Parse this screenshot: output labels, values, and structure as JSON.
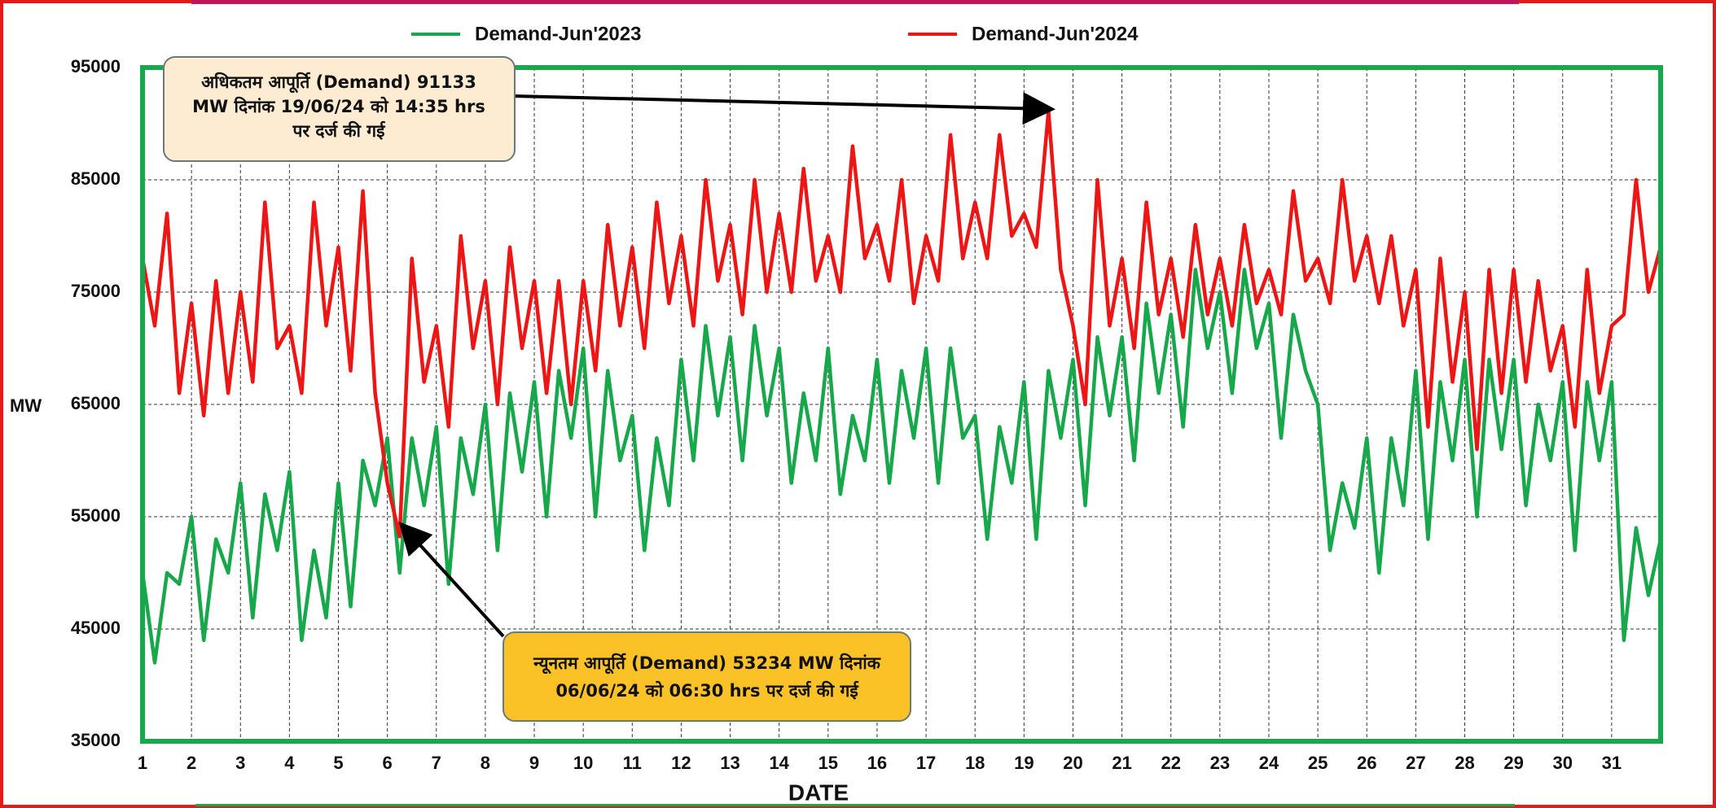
{
  "chart_data": {
    "type": "line",
    "xlabel": "DATE",
    "ylabel": "MW",
    "xlim": [
      1,
      32
    ],
    "ylim": [
      35000,
      95000
    ],
    "xticks": [
      1,
      2,
      3,
      4,
      5,
      6,
      7,
      8,
      9,
      10,
      11,
      12,
      13,
      14,
      15,
      16,
      17,
      18,
      19,
      20,
      21,
      22,
      23,
      24,
      25,
      26,
      27,
      28,
      29,
      30,
      31
    ],
    "yticks": [
      35000,
      45000,
      55000,
      65000,
      75000,
      85000,
      95000
    ],
    "grid": true,
    "legend": "top",
    "x": [
      1,
      1.25,
      1.5,
      1.75,
      2,
      2.25,
      2.5,
      2.75,
      3,
      3.25,
      3.5,
      3.75,
      4,
      4.25,
      4.5,
      4.75,
      5,
      5.25,
      5.5,
      5.75,
      6,
      6.25,
      6.5,
      6.75,
      7,
      7.25,
      7.5,
      7.75,
      8,
      8.25,
      8.5,
      8.75,
      9,
      9.25,
      9.5,
      9.75,
      10,
      10.25,
      10.5,
      10.75,
      11,
      11.25,
      11.5,
      11.75,
      12,
      12.25,
      12.5,
      12.75,
      13,
      13.25,
      13.5,
      13.75,
      14,
      14.25,
      14.5,
      14.75,
      15,
      15.25,
      15.5,
      15.75,
      16,
      16.25,
      16.5,
      16.75,
      17,
      17.25,
      17.5,
      17.75,
      18,
      18.25,
      18.5,
      18.75,
      19,
      19.25,
      19.5,
      19.75,
      20,
      20.25,
      20.5,
      20.75,
      21,
      21.25,
      21.5,
      21.75,
      22,
      22.25,
      22.5,
      22.75,
      23,
      23.25,
      23.5,
      23.75,
      24,
      24.25,
      24.5,
      24.75,
      25,
      25.25,
      25.5,
      25.75,
      26,
      26.25,
      26.5,
      26.75,
      27,
      27.25,
      27.5,
      27.75,
      28,
      28.25,
      28.5,
      28.75,
      29,
      29.25,
      29.5,
      29.75,
      30,
      30.25,
      30.5,
      30.75,
      31,
      31.25,
      31.5,
      31.75,
      32
    ],
    "series": [
      {
        "name": "Demand-Jun'2023",
        "color": "#17a84b",
        "values": [
          50000,
          42000,
          50000,
          49000,
          55000,
          44000,
          53000,
          50000,
          58000,
          46000,
          57000,
          52000,
          59000,
          44000,
          52000,
          46000,
          58000,
          47000,
          60000,
          56000,
          62000,
          50000,
          62000,
          56000,
          63000,
          49000,
          62000,
          57000,
          65000,
          52000,
          66000,
          59000,
          67000,
          55000,
          68000,
          62000,
          70000,
          55000,
          68000,
          60000,
          64000,
          52000,
          62000,
          56000,
          69000,
          60000,
          72000,
          64000,
          71000,
          60000,
          72000,
          64000,
          70000,
          58000,
          66000,
          60000,
          70000,
          57000,
          64000,
          60000,
          69000,
          58000,
          68000,
          62000,
          70000,
          58000,
          70000,
          62000,
          64000,
          53000,
          63000,
          58000,
          67000,
          53000,
          68000,
          62000,
          69000,
          56000,
          71000,
          64000,
          71000,
          60000,
          74000,
          66000,
          73000,
          63000,
          77000,
          70000,
          75000,
          66000,
          77000,
          70000,
          74000,
          62000,
          73000,
          68000,
          65000,
          52000,
          58000,
          54000,
          62000,
          50000,
          62000,
          56000,
          68000,
          53000,
          67000,
          60000,
          69000,
          55000,
          69000,
          61000,
          69000,
          56000,
          65000,
          60000,
          67000,
          52000,
          67000,
          60000,
          67000,
          44000,
          54000,
          48000,
          53000
        ]
      },
      {
        "name": "Demand-Jun'2024",
        "color": "#ee1515",
        "values": [
          78000,
          72000,
          82000,
          66000,
          74000,
          64000,
          76000,
          66000,
          75000,
          67000,
          83000,
          70000,
          72000,
          66000,
          83000,
          72000,
          79000,
          68000,
          84000,
          66000,
          58000,
          53234,
          78000,
          67000,
          72000,
          63000,
          80000,
          70000,
          76000,
          65000,
          79000,
          70000,
          76000,
          66000,
          76000,
          65000,
          76000,
          68000,
          81000,
          72000,
          79000,
          70000,
          83000,
          74000,
          80000,
          72000,
          85000,
          76000,
          81000,
          73000,
          85000,
          75000,
          82000,
          75000,
          86000,
          76000,
          80000,
          75000,
          88000,
          78000,
          81000,
          76000,
          85000,
          74000,
          80000,
          76000,
          89000,
          78000,
          83000,
          78000,
          89000,
          80000,
          82000,
          79000,
          91133,
          77000,
          72000,
          65000,
          85000,
          72000,
          78000,
          70000,
          83000,
          73000,
          78000,
          71000,
          81000,
          73000,
          78000,
          72000,
          81000,
          74000,
          77000,
          73000,
          84000,
          76000,
          78000,
          74000,
          85000,
          76000,
          80000,
          74000,
          80000,
          72000,
          77000,
          63000,
          78000,
          67000,
          75000,
          61000,
          77000,
          66000,
          77000,
          67000,
          76000,
          68000,
          72000,
          63000,
          77000,
          66000,
          72000,
          73000,
          85000,
          75000,
          79000
        ]
      }
    ],
    "annotations": [
      {
        "lines": [
          "अधिकतम आपूर्ति (Demand) 91133",
          "MW दिनांक 19/06/24 को 14:35 hrs",
          "पर दर्ज की गई"
        ]
      },
      {
        "lines": [
          "न्यूनतम आपूर्ति (Demand) 53234 MW दिनांक",
          "06/06/24 को 06:30 hrs पर दर्ज की गई"
        ]
      }
    ]
  }
}
